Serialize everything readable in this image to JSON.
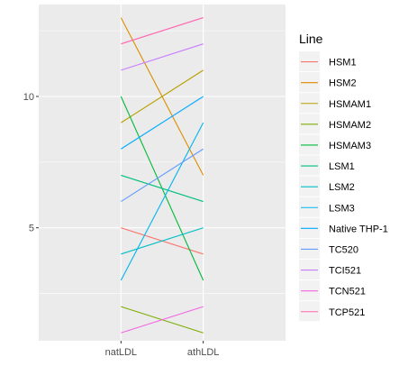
{
  "chart_data": {
    "type": "line",
    "x": [
      "natLDL",
      "athLDL"
    ],
    "xlabel": "",
    "ylabel": "",
    "ylim": [
      0.7,
      13.5
    ],
    "y_ticks": [
      5,
      10
    ],
    "grid": true,
    "legend": {
      "title": "Line",
      "position": "right"
    },
    "series": [
      {
        "name": "HSM1",
        "color": "#F8766D",
        "values": [
          5,
          4
        ]
      },
      {
        "name": "HSM2",
        "color": "#DE8C00",
        "values": [
          13,
          7
        ]
      },
      {
        "name": "HSMAM1",
        "color": "#B79F00",
        "values": [
          9,
          11
        ]
      },
      {
        "name": "HSMAM2",
        "color": "#7CAE00",
        "values": [
          2,
          1
        ]
      },
      {
        "name": "HSMAM3",
        "color": "#00BA38",
        "values": [
          10,
          3
        ]
      },
      {
        "name": "LSM1",
        "color": "#00BF7D",
        "values": [
          7,
          6
        ]
      },
      {
        "name": "LSM2",
        "color": "#00BFC4",
        "values": [
          4,
          5
        ]
      },
      {
        "name": "LSM3",
        "color": "#00B4F0",
        "values": [
          3,
          9
        ]
      },
      {
        "name": "Native THP-1",
        "color": "#00A9FF",
        "values": [
          8,
          10
        ]
      },
      {
        "name": "TC520",
        "color": "#619CFF",
        "values": [
          6,
          8
        ]
      },
      {
        "name": "TCI521",
        "color": "#C77CFF",
        "values": [
          11,
          12
        ]
      },
      {
        "name": "TCN521",
        "color": "#F564E3",
        "values": [
          1,
          2
        ]
      },
      {
        "name": "TCP521",
        "color": "#FF64B0",
        "values": [
          12,
          13
        ]
      }
    ]
  }
}
